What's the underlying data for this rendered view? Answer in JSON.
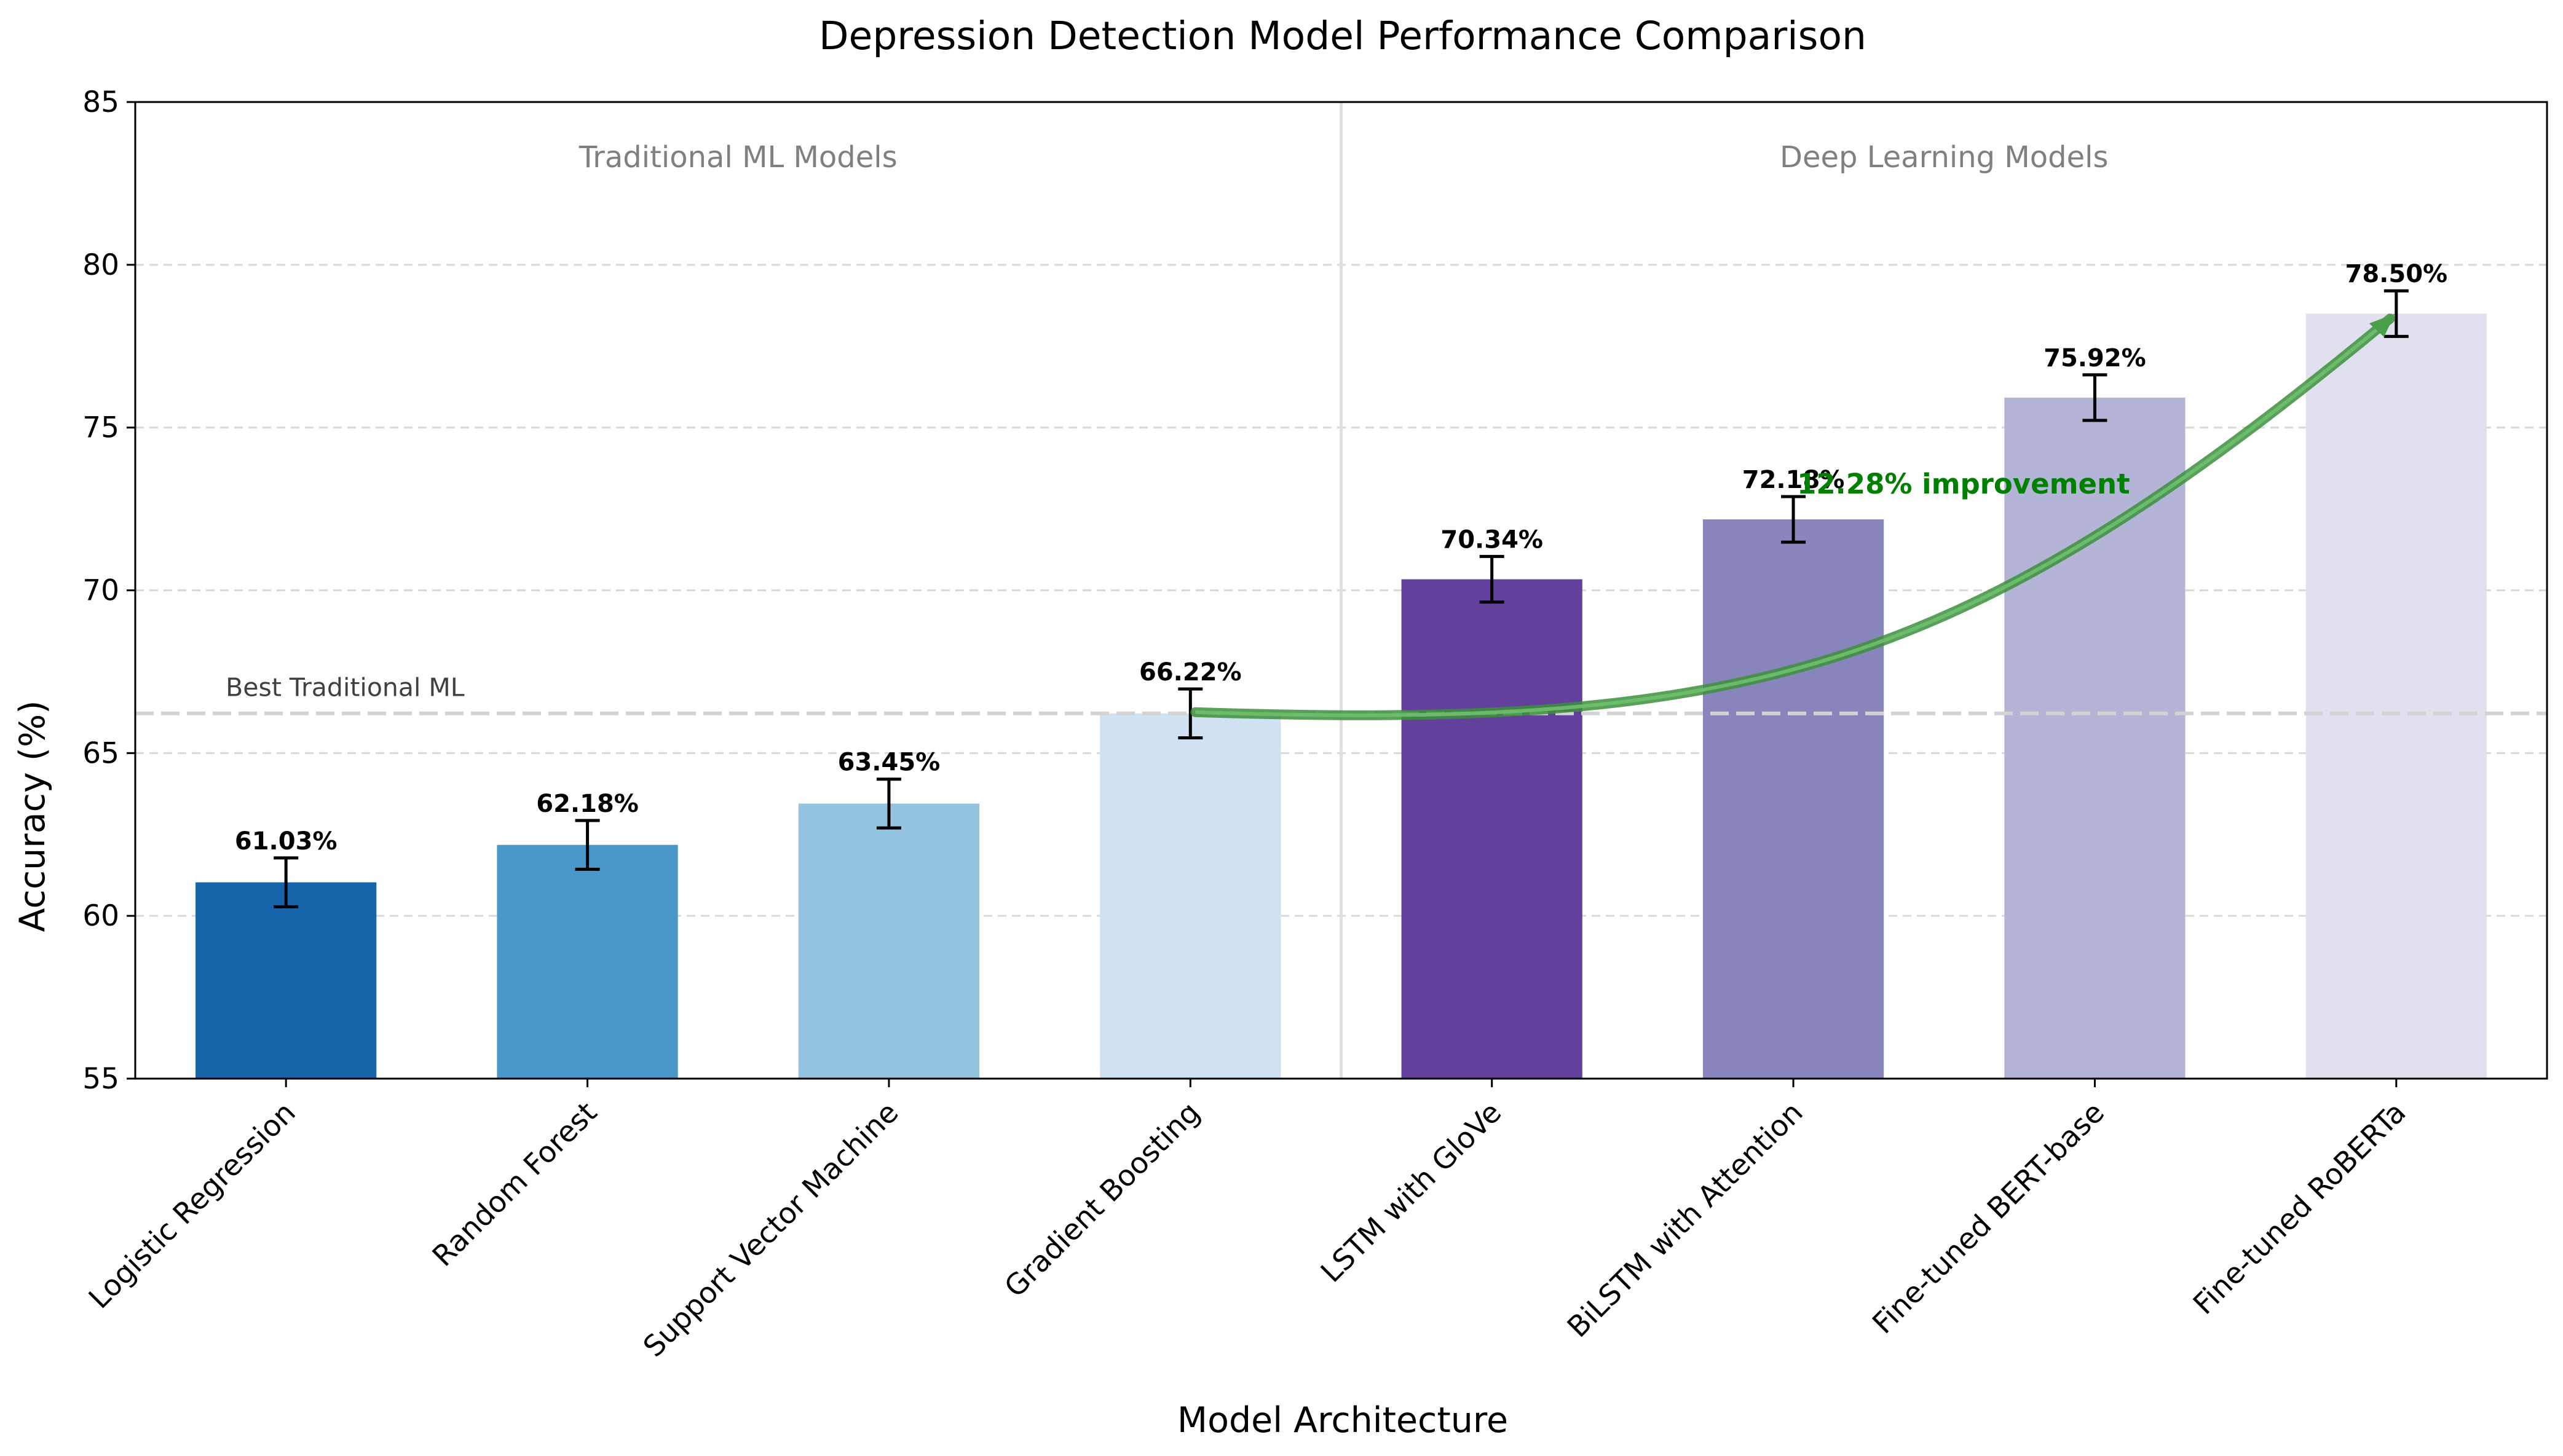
{
  "chart_data": {
    "type": "bar",
    "title": "Depression Detection Model Performance Comparison",
    "xlabel": "Model Architecture",
    "ylabel": "Accuracy (%)",
    "ylim": [
      55,
      85
    ],
    "yticks": [
      55,
      60,
      65,
      70,
      75,
      80,
      85
    ],
    "grid": "horizontal dashed",
    "categories": [
      "Logistic Regression",
      "Random Forest",
      "Support Vector Machine",
      "Gradient Boosting",
      "LSTM with GloVe",
      "BiLSTM with Attention",
      "Fine-tuned BERT-base",
      "Fine-tuned RoBERTa"
    ],
    "values": [
      61.03,
      62.18,
      63.45,
      66.22,
      70.34,
      72.18,
      75.92,
      78.5
    ],
    "value_labels": [
      "61.03%",
      "62.18%",
      "63.45%",
      "66.22%",
      "70.34%",
      "72.18%",
      "75.92%",
      "78.50%"
    ],
    "error": [
      0.75,
      0.75,
      0.75,
      0.75,
      0.7,
      0.7,
      0.7,
      0.7
    ],
    "colors": [
      "#1764ab",
      "#4a98c9",
      "#94c4df",
      "#d0e1f2",
      "#63409b",
      "#8884bc",
      "#b4b4d7",
      "#e0e0ee"
    ],
    "regions": [
      {
        "label": "Traditional ML Models"
      },
      {
        "label": "Deep Learning Models"
      }
    ],
    "reference_line": {
      "y": 66.22,
      "label": "Best Traditional ML",
      "color": "#d3d3d3"
    },
    "annotation": {
      "text": "12.28% improvement",
      "color": "#008000",
      "from_category": 3,
      "to_category": 7
    }
  }
}
